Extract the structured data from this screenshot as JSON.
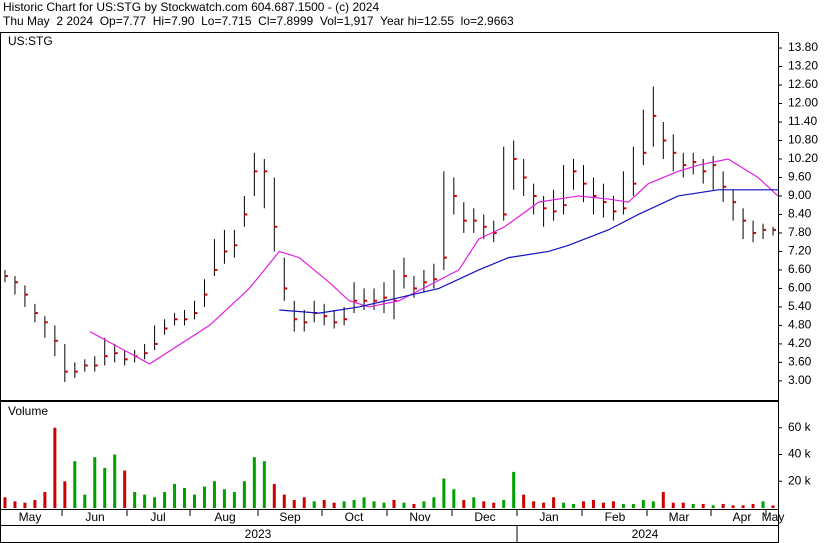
{
  "chart_data": {
    "type": "ohlc",
    "title": "Historic Chart for US:STG by Stockwatch.com 604.687.1500 - (c) 2024",
    "subtitle": "Thu May  2 2024  Op=7.77  Hi=7.90  Lo=7.715  Cl=7.8999  Vol=1,917  Year hi=12.55  lo=2.9663",
    "symbol": "US:STG",
    "volume_title": "Volume",
    "x_labels": [
      "May",
      "Jun",
      "Jul",
      "Aug",
      "Sep",
      "Oct",
      "Nov",
      "Dec",
      "Jan",
      "Feb",
      "Mar",
      "Apr",
      "May"
    ],
    "years": [
      "2023",
      "2024"
    ],
    "bar_color": "#000000",
    "close_color": "#d00000",
    "high": [
      6.6,
      6.4,
      6.1,
      5.5,
      5.1,
      4.8,
      4.2,
      3.6,
      3.7,
      3.8,
      4.4,
      4.2,
      4.0,
      4.0,
      4.2,
      4.8,
      5.0,
      5.2,
      5.3,
      5.6,
      6.3,
      7.6,
      7.9,
      7.9,
      9.0,
      10.4,
      10.2,
      9.6,
      7.0,
      5.6,
      5.3,
      5.6,
      5.5,
      5.3,
      5.4,
      6.2,
      6.0,
      6.0,
      6.2,
      6.6,
      7.0,
      6.4,
      6.6,
      6.8,
      9.8,
      9.6,
      8.8,
      8.6,
      8.4,
      8.2,
      10.6,
      10.8,
      10.2,
      9.4,
      9.0,
      9.2,
      10.0,
      10.2,
      10.0,
      9.6,
      9.4,
      9.0,
      9.8,
      10.6,
      11.8,
      12.55,
      11.4,
      11.0,
      10.4,
      10.4,
      10.2,
      10.3,
      9.8,
      9.2,
      8.6,
      8.2,
      8.1,
      8.0
    ],
    "low": [
      6.2,
      5.8,
      5.4,
      4.9,
      4.4,
      3.8,
      2.9663,
      3.1,
      3.3,
      3.3,
      3.5,
      3.6,
      3.5,
      3.6,
      3.7,
      4.0,
      4.5,
      4.8,
      4.8,
      5.0,
      5.4,
      6.4,
      6.8,
      7.0,
      8.0,
      9.0,
      8.6,
      7.2,
      5.6,
      4.6,
      4.6,
      4.9,
      4.8,
      4.7,
      4.8,
      5.2,
      5.3,
      5.3,
      5.2,
      5.0,
      6.0,
      5.7,
      5.9,
      6.0,
      6.6,
      8.4,
      7.8,
      7.8,
      7.6,
      7.5,
      8.2,
      9.2,
      9.0,
      8.4,
      8.0,
      8.2,
      8.4,
      9.2,
      8.8,
      8.4,
      8.3,
      8.2,
      8.4,
      9.0,
      10.0,
      10.6,
      10.2,
      9.8,
      9.6,
      9.7,
      9.4,
      9.2,
      8.8,
      8.2,
      7.6,
      7.5,
      7.6,
      7.715
    ],
    "close": [
      6.4,
      6.2,
      5.8,
      5.2,
      4.9,
      4.3,
      3.3,
      3.3,
      3.5,
      3.5,
      3.8,
      3.9,
      3.7,
      3.8,
      3.9,
      4.2,
      4.7,
      5.0,
      5.0,
      5.2,
      5.8,
      6.6,
      7.2,
      7.4,
      8.4,
      9.8,
      9.8,
      8.0,
      6.0,
      5.0,
      4.9,
      5.2,
      5.1,
      4.9,
      5.0,
      5.6,
      5.6,
      5.6,
      5.7,
      5.6,
      6.4,
      6.0,
      6.2,
      6.3,
      7.0,
      9.0,
      8.2,
      8.2,
      8.0,
      7.8,
      8.4,
      10.2,
      9.6,
      9.0,
      8.6,
      8.5,
      8.7,
      9.8,
      9.4,
      9.0,
      8.8,
      8.5,
      8.6,
      9.4,
      10.4,
      11.6,
      10.8,
      10.4,
      10.0,
      10.1,
      9.8,
      10.0,
      9.3,
      8.8,
      8.2,
      7.8,
      7.9,
      7.8999
    ],
    "ylim": [
      2.38,
      14.32
    ],
    "yticks": [
      {
        "value": 3,
        "label": "3.00"
      },
      {
        "value": 3.6,
        "label": "3.60"
      },
      {
        "value": 4.2,
        "label": "4.20"
      },
      {
        "value": 4.8,
        "label": "4.80"
      },
      {
        "value": 5.4,
        "label": "5.40"
      },
      {
        "value": 6,
        "label": "6.00"
      },
      {
        "value": 6.6,
        "label": "6.60"
      },
      {
        "value": 7.2,
        "label": "7.20"
      },
      {
        "value": 7.8,
        "label": "7.80"
      },
      {
        "value": 8.4,
        "label": "8.40"
      },
      {
        "value": 9,
        "label": "9.00"
      },
      {
        "value": 9.6,
        "label": "9.60"
      },
      {
        "value": 10.2,
        "label": "10.20"
      },
      {
        "value": 10.8,
        "label": "10.80"
      },
      {
        "value": 11.4,
        "label": "11.40"
      },
      {
        "value": 12,
        "label": "12.00"
      },
      {
        "value": 12.6,
        "label": "12.60"
      },
      {
        "value": 13.2,
        "label": "13.20"
      },
      {
        "value": 13.8,
        "label": "13.80"
      }
    ],
    "moving_averages": [
      {
        "color": "#e020e0",
        "x": [
          9,
          15,
          21,
          25,
          28,
          30,
          33,
          35,
          37,
          40,
          43,
          46,
          48,
          50.6,
          54,
          58,
          61,
          63,
          65,
          68,
          70,
          73,
          76,
          78
        ],
        "values": [
          4.6,
          3.55,
          4.8,
          6.0,
          7.2,
          7.0,
          6.2,
          5.6,
          5.4,
          5.6,
          6.1,
          6.6,
          7.6,
          8.0,
          8.8,
          9.0,
          8.9,
          8.8,
          9.4,
          9.8,
          10.0,
          10.2,
          9.6,
          9.0
        ]
      },
      {
        "color": "#1010c0",
        "x": [
          28,
          32,
          36,
          40,
          44,
          48,
          51,
          55,
          57,
          61,
          64,
          68,
          72,
          78
        ],
        "values": [
          5.3,
          5.2,
          5.4,
          5.7,
          6.0,
          6.6,
          7.0,
          7.2,
          7.4,
          7.9,
          8.4,
          9.0,
          9.2,
          9.2
        ]
      }
    ],
    "volume": {
      "up_color": "#00a000",
      "down_color": "#d00000",
      "ylim": [
        0,
        80000
      ],
      "yticks": [
        {
          "value": 20000,
          "label": "20 k"
        },
        {
          "value": 40000,
          "label": "40 k"
        },
        {
          "value": 60000,
          "label": "60 k"
        }
      ],
      "values": [
        8000,
        5000,
        4000,
        6000,
        12000,
        60000,
        20000,
        35000,
        10000,
        38000,
        30000,
        40000,
        28000,
        12000,
        10000,
        8000,
        12000,
        18000,
        15000,
        10000,
        16000,
        20000,
        14000,
        12000,
        20000,
        38000,
        35000,
        18000,
        10000,
        6000,
        8000,
        5000,
        6000,
        4000,
        5000,
        6000,
        8000,
        5000,
        4000,
        6000,
        4000,
        3000,
        5000,
        8000,
        22000,
        14000,
        6000,
        8000,
        5000,
        4000,
        6000,
        27000,
        10000,
        5000,
        4000,
        8000,
        4000,
        3000,
        5000,
        6000,
        4000,
        5000,
        3000,
        3000,
        6000,
        5000,
        12000,
        4000,
        4000,
        3000,
        3000,
        2000,
        3000,
        2000,
        2000,
        3000,
        5000,
        1917
      ]
    }
  }
}
